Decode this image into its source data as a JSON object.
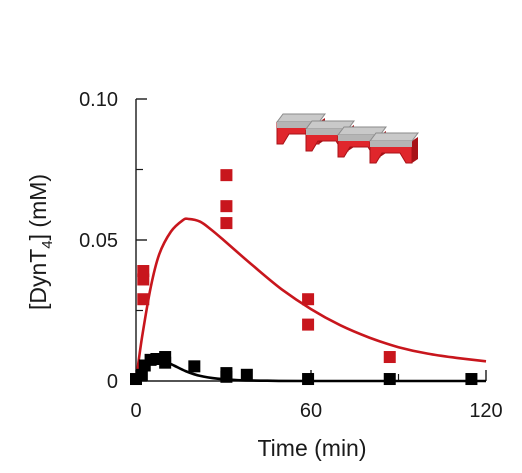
{
  "chart_data": {
    "type": "scatter",
    "xlabel": "Time (min)",
    "ylabel": {
      "prefix": "[DynT",
      "subscript": "4",
      "suffix": "] (mM)"
    },
    "xlim": [
      0,
      120
    ],
    "ylim": [
      0,
      0.1
    ],
    "x_ticks": [
      0,
      60,
      120
    ],
    "y_ticks": [
      0,
      0.05,
      0.1
    ],
    "y_tick_labels": [
      "0",
      "0.05",
      "0.10"
    ],
    "grid": false,
    "legend": "none",
    "series": [
      {
        "color": "#c8161d",
        "marker": "square",
        "points": [
          {
            "x": 2.5,
            "y": 0.036
          },
          {
            "x": 2.5,
            "y": 0.039
          },
          {
            "x": 2.5,
            "y": 0.029
          },
          {
            "x": 31,
            "y": 0.073
          },
          {
            "x": 31,
            "y": 0.062
          },
          {
            "x": 31,
            "y": 0.056
          },
          {
            "x": 59,
            "y": 0.029
          },
          {
            "x": 59,
            "y": 0.02
          },
          {
            "x": 87,
            "y": 0.0085
          }
        ],
        "fit": [
          {
            "x": 0,
            "y": 0.0
          },
          {
            "x": 2,
            "y": 0.015
          },
          {
            "x": 5,
            "y": 0.033
          },
          {
            "x": 8,
            "y": 0.045
          },
          {
            "x": 12,
            "y": 0.053
          },
          {
            "x": 16,
            "y": 0.057
          },
          {
            "x": 18,
            "y": 0.0575
          },
          {
            "x": 22,
            "y": 0.0565
          },
          {
            "x": 26,
            "y": 0.0535
          },
          {
            "x": 30,
            "y": 0.05
          },
          {
            "x": 40,
            "y": 0.041
          },
          {
            "x": 50,
            "y": 0.0325
          },
          {
            "x": 60,
            "y": 0.0255
          },
          {
            "x": 70,
            "y": 0.0198
          },
          {
            "x": 80,
            "y": 0.0154
          },
          {
            "x": 90,
            "y": 0.012
          },
          {
            "x": 100,
            "y": 0.0097
          },
          {
            "x": 110,
            "y": 0.0082
          },
          {
            "x": 120,
            "y": 0.007
          }
        ]
      },
      {
        "color": "#000000",
        "marker": "square",
        "points": [
          {
            "x": 0,
            "y": 0.0007
          },
          {
            "x": 2,
            "y": 0.0022
          },
          {
            "x": 3,
            "y": 0.0055
          },
          {
            "x": 5,
            "y": 0.0075
          },
          {
            "x": 7,
            "y": 0.0078
          },
          {
            "x": 10,
            "y": 0.0065
          },
          {
            "x": 10,
            "y": 0.0085
          },
          {
            "x": 20,
            "y": 0.0052
          },
          {
            "x": 31,
            "y": 0.0028
          },
          {
            "x": 31,
            "y": 0.0015
          },
          {
            "x": 38,
            "y": 0.0022
          },
          {
            "x": 59,
            "y": 0.0007
          },
          {
            "x": 87,
            "y": 0.0007
          },
          {
            "x": 115,
            "y": 0.0007
          }
        ],
        "fit": [
          {
            "x": 0,
            "y": 0.0
          },
          {
            "x": 1,
            "y": 0.0012
          },
          {
            "x": 2,
            "y": 0.003
          },
          {
            "x": 4,
            "y": 0.0055
          },
          {
            "x": 6,
            "y": 0.0068
          },
          {
            "x": 8,
            "y": 0.0072
          },
          {
            "x": 10,
            "y": 0.0068
          },
          {
            "x": 13,
            "y": 0.0055
          },
          {
            "x": 17,
            "y": 0.0035
          },
          {
            "x": 22,
            "y": 0.0018
          },
          {
            "x": 28,
            "y": 0.0008
          },
          {
            "x": 35,
            "y": 0.0003
          },
          {
            "x": 45,
            "y": 0.0001
          },
          {
            "x": 60,
            "y": 0.0
          },
          {
            "x": 120,
            "y": 0.0
          }
        ]
      }
    ]
  },
  "decoration": {
    "icon": "stacked-red-gray-block-icon",
    "colors": {
      "top": "#c9c9c9",
      "topDark": "#8a8a8a",
      "body": "#e0262c",
      "bodyDark": "#a81217"
    }
  }
}
